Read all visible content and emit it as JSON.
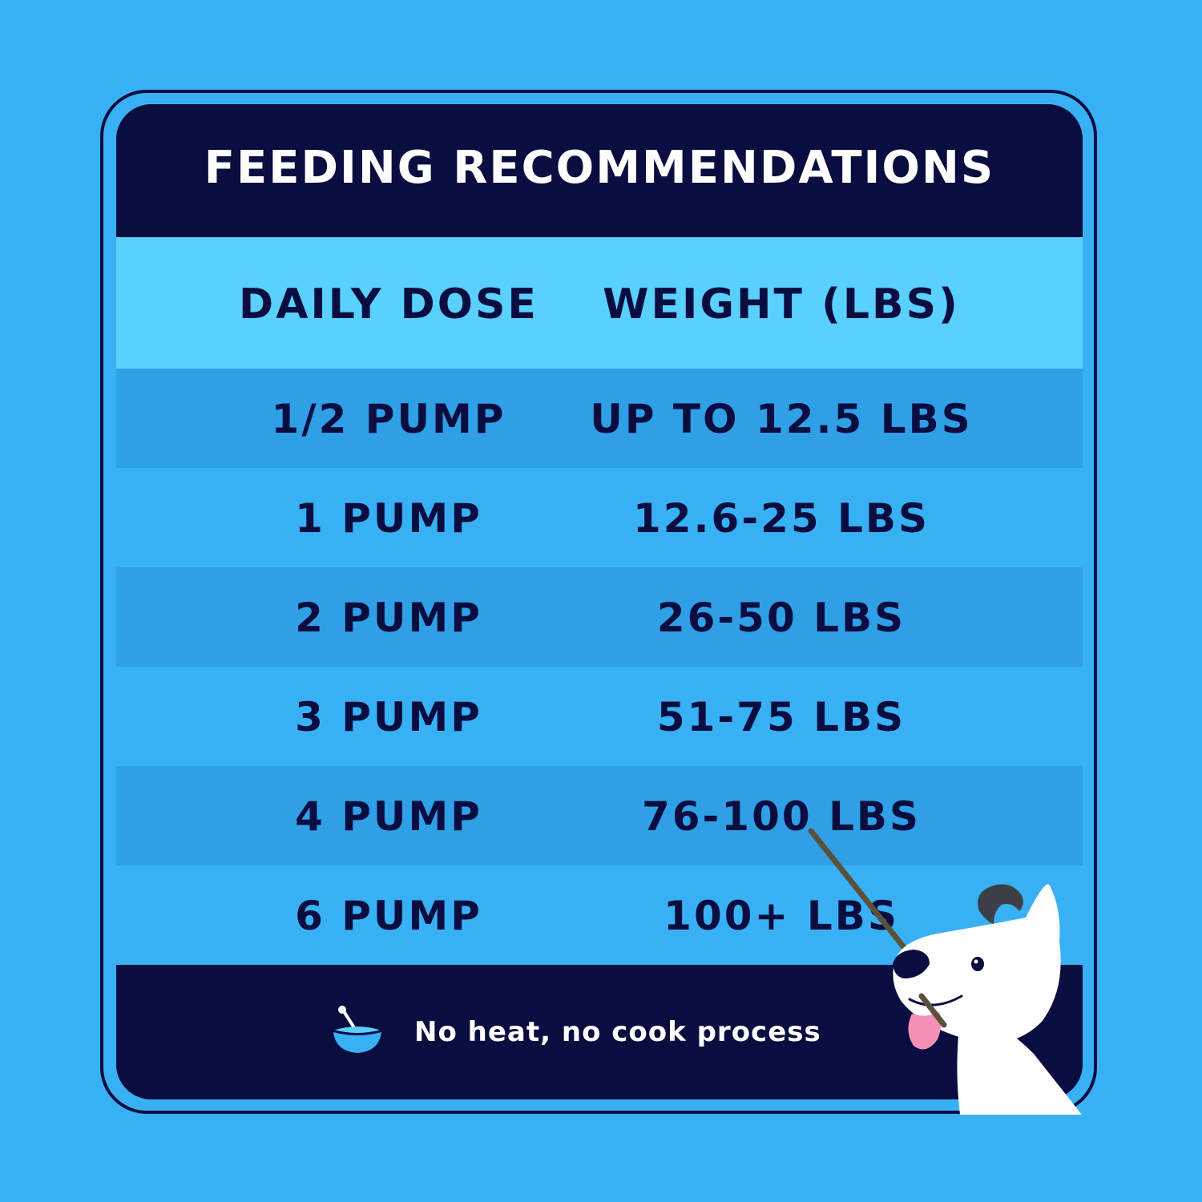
{
  "title": "FEEDING RECOMMENDATIONS",
  "columns": {
    "dose": "DAILY DOSE",
    "weight": "WEIGHT (LBS)"
  },
  "rows": [
    {
      "dose": "1/2 PUMP",
      "weight": "UP TO 12.5 LBS"
    },
    {
      "dose": "1 PUMP",
      "weight": "12.6-25 LBS"
    },
    {
      "dose": "2 PUMP",
      "weight": "26-50 LBS"
    },
    {
      "dose": "3 PUMP",
      "weight": "51-75 LBS"
    },
    {
      "dose": "4 PUMP",
      "weight": "76-100 LBS"
    },
    {
      "dose": "6 PUMP",
      "weight": "100+ LBS"
    }
  ],
  "footer": {
    "text": "No heat, no cook process",
    "icon": "bowl-icon"
  },
  "colors": {
    "background": "#38b1f4",
    "navy": "#0a0d40",
    "header_row": "#59d0fd",
    "row_alt": "#2f9fe6"
  }
}
